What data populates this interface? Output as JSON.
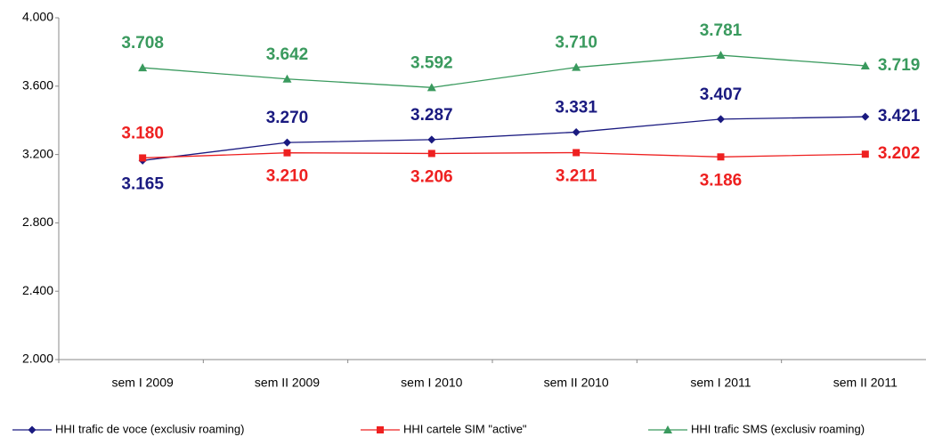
{
  "chart_data": {
    "type": "line",
    "categories": [
      "sem I 2009",
      "sem II 2009",
      "sem I 2010",
      "sem II 2010",
      "sem I 2011",
      "sem II 2011"
    ],
    "ylim": [
      2000,
      4000
    ],
    "yticks": [
      {
        "value": 2000,
        "label": "2.000"
      },
      {
        "value": 2400,
        "label": "2.400"
      },
      {
        "value": 2800,
        "label": "2.800"
      },
      {
        "value": 3200,
        "label": "3.200"
      },
      {
        "value": 3600,
        "label": "3.600"
      },
      {
        "value": 4000,
        "label": "4.000"
      }
    ],
    "series": [
      {
        "name": "HHI trafic de voce (exclusiv roaming)",
        "color": "#1a1a80",
        "marker": "diamond",
        "values": [
          3165,
          3270,
          3287,
          3331,
          3407,
          3421
        ],
        "value_labels": [
          "3.165",
          "3.270",
          "3.287",
          "3.331",
          "3.407",
          "3.421"
        ]
      },
      {
        "name": "HHI cartele SIM \"active\"",
        "color": "#ee2020",
        "marker": "square",
        "values": [
          3180,
          3210,
          3206,
          3211,
          3186,
          3202
        ],
        "value_labels": [
          "3.180",
          "3.210",
          "3.206",
          "3.211",
          "3.186",
          "3.202"
        ]
      },
      {
        "name": "HHI trafic SMS (exclusiv roaming)",
        "color": "#3a9a5e",
        "marker": "triangle",
        "values": [
          3708,
          3642,
          3592,
          3710,
          3781,
          3719
        ],
        "value_labels": [
          "3.708",
          "3.642",
          "3.592",
          "3.710",
          "3.781",
          "3.719"
        ]
      }
    ]
  }
}
